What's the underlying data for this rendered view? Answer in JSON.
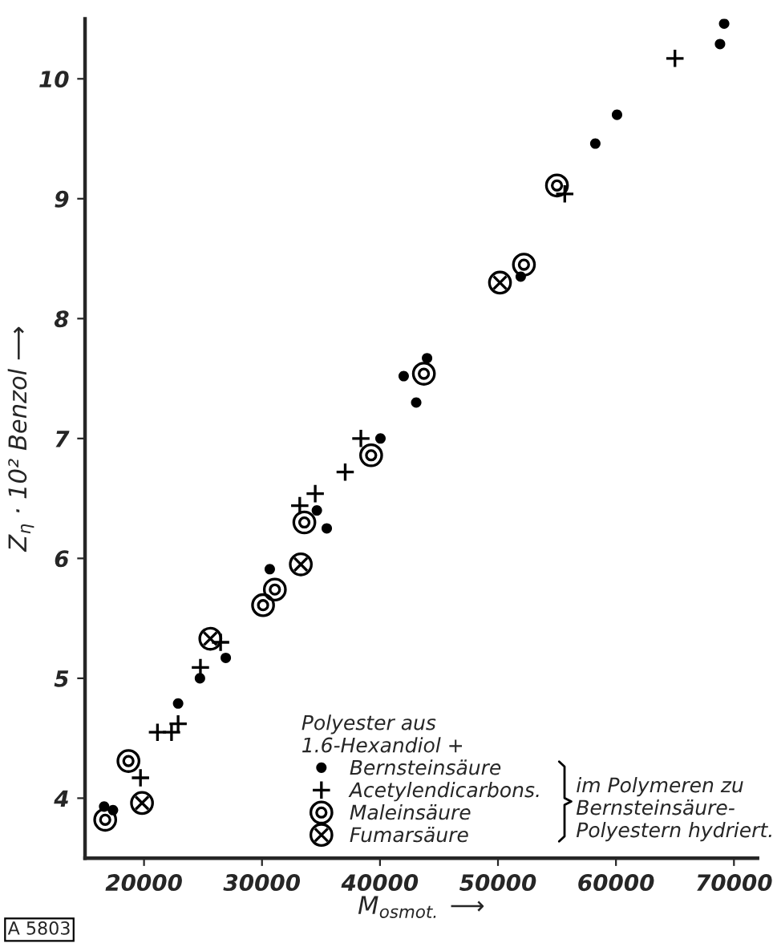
{
  "chart_data": {
    "type": "scatter",
    "xlabel": "M$_{osmot.}$ ⟶",
    "ylabel": "Z$_{η}$ · 10² Benzol ⟶",
    "legend_title": "Polyester aus\n1.6-Hexandiol +",
    "xlim": [
      15000,
      72000
    ],
    "ylim": [
      3.5,
      10.5
    ],
    "xticks": [
      20000,
      30000,
      40000,
      50000,
      60000,
      70000
    ],
    "yticks": [
      4,
      5,
      6,
      7,
      8,
      9,
      10
    ],
    "grid": false,
    "legend": "bottom",
    "annotations": [
      "im Polymeren zu\nBernsteinsäure-\nPolyestern hydriert.",
      "A 5803"
    ],
    "series": [
      {
        "name": "Bernsteinsäure",
        "color": "#000000",
        "marker": "circle",
        "x": [
          69170,
          68820,
          60090,
          58250,
          51930,
          43990,
          42010,
          43070,
          40040,
          35490,
          34650,
          30660,
          26930,
          24740,
          22890,
          17370,
          16620
        ],
        "values": [
          10.46,
          10.29,
          9.7,
          9.46,
          8.35,
          7.67,
          7.52,
          7.3,
          7.0,
          6.25,
          6.4,
          5.91,
          5.17,
          5.0,
          4.79,
          3.9,
          3.93
        ]
      },
      {
        "name": "Acetylendicarbons.",
        "color": "#000000",
        "marker": "cross",
        "x": [
          65000,
          55660,
          38380,
          37050,
          34510,
          33200,
          26490,
          24780,
          22890,
          21140,
          22330,
          19700
        ],
        "values": [
          10.17,
          9.04,
          7.0,
          6.72,
          6.54,
          6.44,
          5.3,
          5.09,
          4.62,
          4.55,
          4.55,
          4.17
        ]
      },
      {
        "name": "Maleinsäure",
        "color": "#000000",
        "x": [
          55000,
          52200,
          43720,
          39250,
          33590,
          31090,
          30090,
          18680,
          16710
        ],
        "values": [
          9.11,
          8.45,
          7.54,
          6.86,
          6.3,
          5.74,
          5.61,
          4.31,
          3.82
        ]
      },
      {
        "name": "Fumarsäure",
        "color": "#000000",
        "x": [
          50170,
          33290,
          25620,
          19830
        ],
        "values": [
          8.3,
          5.95,
          5.33,
          3.96
        ]
      }
    ]
  }
}
